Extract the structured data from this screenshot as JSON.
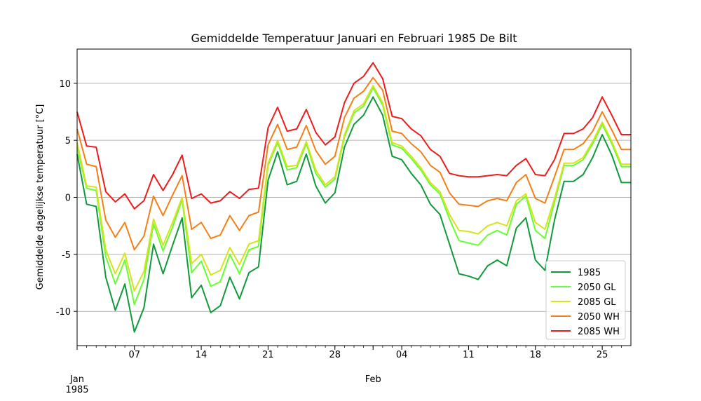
{
  "chart_data": {
    "type": "line",
    "title": "Gemiddelde Temperatuur Januari en Februari 1985 De Bilt",
    "xlabel": "",
    "ylabel": "Gemiddelde dagelijkse temperatuur [°C]",
    "ylim": [
      -13,
      13
    ],
    "x_range_days": [
      1,
      59
    ],
    "grid": "horizontal",
    "legend_position": "lower right",
    "x_ticks": [
      {
        "day": 1,
        "label": "Jan"
      },
      {
        "day": 7,
        "label": "07"
      },
      {
        "day": 14,
        "label": "14"
      },
      {
        "day": 21,
        "label": "21"
      },
      {
        "day": 28,
        "label": "28"
      },
      {
        "day": 32,
        "label": "Feb"
      },
      {
        "day": 35,
        "label": "04"
      },
      {
        "day": 42,
        "label": "11"
      },
      {
        "day": 49,
        "label": "18"
      },
      {
        "day": 56,
        "label": "25"
      }
    ],
    "x_year_label": "1985",
    "y_ticks": [
      -10,
      -5,
      0,
      5,
      10
    ],
    "x_start_date": "1985-01-01",
    "series": [
      {
        "name": "1985",
        "color": "#109a3a",
        "values": [
          3.8,
          -0.6,
          -0.8,
          -7.0,
          -9.9,
          -7.6,
          -11.8,
          -9.7,
          -4.1,
          -6.7,
          -4.2,
          -1.8,
          -8.8,
          -7.7,
          -10.1,
          -9.5,
          -7.0,
          -8.9,
          -6.6,
          -6.1,
          1.5,
          4.0,
          1.1,
          1.4,
          3.8,
          1.0,
          -0.5,
          0.4,
          4.4,
          6.4,
          7.2,
          8.8,
          7.2,
          3.6,
          3.3,
          2.1,
          1.1,
          -0.6,
          -1.5,
          -4.1,
          -6.7,
          -6.9,
          -7.2,
          -6.0,
          -5.5,
          -6.0,
          -2.7,
          -1.8,
          -5.5,
          -6.4,
          -2.0,
          1.4,
          1.4,
          2.0,
          3.5,
          5.5,
          3.7,
          1.3,
          1.3
        ]
      },
      {
        "name": "2050 GL",
        "color": "#66ff33",
        "values": [
          4.4,
          0.8,
          0.6,
          -5.2,
          -7.6,
          -5.5,
          -9.4,
          -7.2,
          -2.3,
          -4.7,
          -2.6,
          -0.2,
          -6.6,
          -5.6,
          -7.8,
          -7.4,
          -5.0,
          -6.7,
          -4.6,
          -4.3,
          2.8,
          4.8,
          2.4,
          2.6,
          4.7,
          2.1,
          0.9,
          1.6,
          5.3,
          7.4,
          8.0,
          9.6,
          8.1,
          4.6,
          4.3,
          3.4,
          2.4,
          1.1,
          0.3,
          -1.9,
          -3.8,
          -4.0,
          -4.2,
          -3.3,
          -2.9,
          -3.3,
          -0.6,
          0.1,
          -2.9,
          -3.6,
          -0.4,
          2.8,
          2.8,
          3.3,
          4.7,
          6.4,
          4.7,
          2.7,
          2.7
        ]
      },
      {
        "name": "2085 GL",
        "color": "#d6e31c",
        "values": [
          4.8,
          1.0,
          0.9,
          -4.6,
          -6.7,
          -4.9,
          -8.2,
          -6.5,
          -1.9,
          -4.2,
          -2.2,
          0.0,
          -5.8,
          -5.0,
          -6.8,
          -6.4,
          -4.4,
          -5.9,
          -4.1,
          -3.8,
          3.0,
          5.0,
          2.7,
          2.8,
          4.9,
          2.4,
          1.1,
          1.8,
          5.5,
          7.6,
          8.2,
          9.8,
          8.3,
          4.8,
          4.5,
          3.6,
          2.6,
          1.3,
          0.5,
          -1.5,
          -2.9,
          -3.0,
          -3.2,
          -2.5,
          -2.2,
          -2.5,
          -0.3,
          0.3,
          -2.2,
          -2.8,
          -0.1,
          3.0,
          3.0,
          3.5,
          4.9,
          6.6,
          4.9,
          2.9,
          2.9
        ]
      },
      {
        "name": "2050 WH",
        "color": "#f57f17",
        "values": [
          6.0,
          2.9,
          2.7,
          -2.0,
          -3.5,
          -2.2,
          -4.6,
          -3.4,
          0.1,
          -1.6,
          0.2,
          1.9,
          -2.8,
          -2.2,
          -3.6,
          -3.3,
          -1.6,
          -2.9,
          -1.6,
          -1.3,
          4.6,
          6.4,
          4.2,
          4.4,
          6.3,
          4.1,
          2.9,
          3.6,
          7.0,
          8.7,
          9.3,
          10.5,
          9.4,
          5.8,
          5.6,
          4.7,
          4.0,
          2.8,
          2.2,
          0.4,
          -0.6,
          -0.7,
          -0.8,
          -0.3,
          -0.1,
          -0.3,
          1.3,
          2.0,
          -0.1,
          -0.5,
          1.8,
          4.2,
          4.2,
          4.7,
          5.8,
          7.5,
          5.9,
          4.2,
          4.2
        ]
      },
      {
        "name": "2085 WH",
        "color": "#ee1c1c",
        "values": [
          7.5,
          4.5,
          4.4,
          0.5,
          -0.4,
          0.3,
          -1.0,
          -0.3,
          2.0,
          0.6,
          2.0,
          3.7,
          -0.1,
          0.3,
          -0.5,
          -0.3,
          0.5,
          -0.1,
          0.7,
          0.8,
          6.1,
          7.9,
          5.8,
          6.0,
          7.7,
          5.7,
          4.6,
          5.3,
          8.3,
          10.0,
          10.6,
          11.8,
          10.4,
          7.1,
          6.9,
          6.0,
          5.4,
          4.2,
          3.6,
          2.1,
          1.9,
          1.8,
          1.8,
          1.9,
          2.0,
          1.9,
          2.8,
          3.4,
          2.0,
          1.9,
          3.3,
          5.6,
          5.6,
          6.0,
          7.0,
          8.8,
          7.2,
          5.5,
          5.5
        ]
      }
    ]
  }
}
